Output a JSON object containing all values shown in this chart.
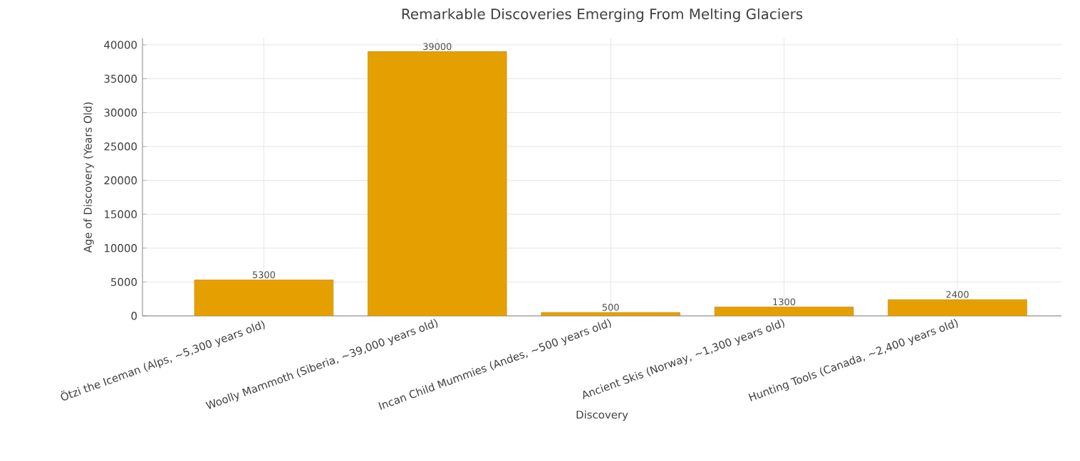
{
  "chart_data": {
    "type": "bar",
    "title": "Remarkable Discoveries Emerging From Melting Glaciers",
    "xlabel": "Discovery",
    "ylabel": "Age of Discovery (Years Old)",
    "categories": [
      "Ötzi the Iceman (Alps, ~5,300 years old)",
      "Woolly Mammoth (Siberia, ~39,000 years old)",
      "Incan Child Mummies (Andes, ~500 years old)",
      "Ancient Skis (Norway, ~1,300 years old)",
      "Hunting Tools (Canada, ~2,400 years old)"
    ],
    "values": [
      5300,
      39000,
      500,
      1300,
      2400
    ],
    "color": "#e5a000",
    "ylim": [
      0,
      40950
    ],
    "yticks": [
      0,
      5000,
      10000,
      15000,
      20000,
      25000,
      30000,
      35000,
      40000
    ],
    "grid": true,
    "data_labels": true
  }
}
